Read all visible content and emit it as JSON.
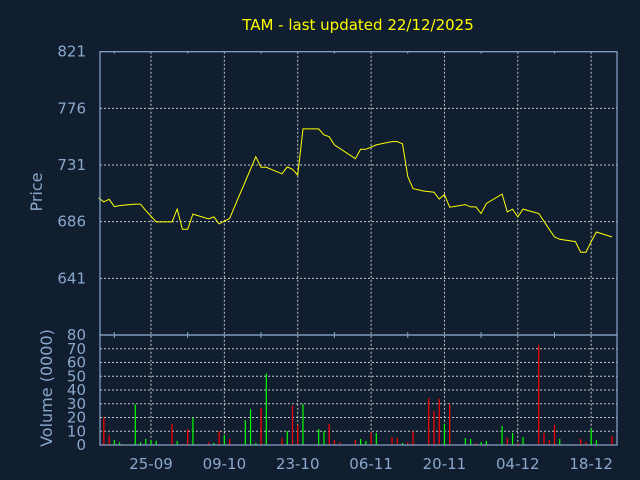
{
  "chart_data": [
    {
      "type": "line",
      "title": "TAM - last updated 22/12/2025",
      "xlabel": "",
      "ylabel": "Price",
      "ylim": [
        596,
        821
      ],
      "yticks": [
        "821",
        "776",
        "731",
        "686",
        "641"
      ],
      "grid": true,
      "colors": {
        "line": "#ffff00",
        "background": "#111e2f",
        "axis": "#8aa8cc",
        "grid": "#c8c8c8"
      },
      "points": [
        [
          "2025-09-15",
          705
        ],
        [
          "2025-09-16",
          701.7
        ],
        [
          "2025-09-17",
          703.8
        ],
        [
          "2025-09-18",
          698
        ],
        [
          "2025-09-19",
          698.8
        ],
        [
          "2025-09-22",
          700
        ],
        [
          "2025-09-23",
          700
        ],
        [
          "2025-09-24",
          694.8
        ],
        [
          "2025-09-26",
          685.8
        ],
        [
          "2025-09-29",
          685.8
        ],
        [
          "2025-09-30",
          696
        ],
        [
          "2025-10-01",
          680
        ],
        [
          "2025-10-02",
          680
        ],
        [
          "2025-10-03",
          692
        ],
        [
          "2025-10-06",
          688.2
        ],
        [
          "2025-10-07",
          689.8
        ],
        [
          "2025-10-08",
          684.2
        ],
        [
          "2025-10-10",
          688.5
        ],
        [
          "2025-10-15",
          737.6
        ],
        [
          "2025-10-16",
          729.2
        ],
        [
          "2025-10-17",
          729.2
        ],
        [
          "2025-10-20",
          724
        ],
        [
          "2025-10-21",
          729.5
        ],
        [
          "2025-10-22",
          727.6
        ],
        [
          "2025-10-23",
          723
        ],
        [
          "2025-10-24",
          759.7
        ],
        [
          "2025-10-27",
          759.7
        ],
        [
          "2025-10-28",
          755
        ],
        [
          "2025-10-29",
          753.5
        ],
        [
          "2025-10-30",
          747
        ],
        [
          "2025-11-03",
          736
        ],
        [
          "2025-11-04",
          743.5
        ],
        [
          "2025-11-05",
          743.5
        ],
        [
          "2025-11-07",
          747
        ],
        [
          "2025-11-09",
          748.8
        ],
        [
          "2025-11-10",
          749.6
        ],
        [
          "2025-11-11",
          749.6
        ],
        [
          "2025-11-12",
          747.8
        ],
        [
          "2025-11-13",
          721.8
        ],
        [
          "2025-11-14",
          712.3
        ],
        [
          "2025-11-16",
          710.4
        ],
        [
          "2025-11-18",
          709.4
        ],
        [
          "2025-11-19",
          704
        ],
        [
          "2025-11-20",
          707.5
        ],
        [
          "2025-11-21",
          697.5
        ],
        [
          "2025-11-24",
          699.6
        ],
        [
          "2025-11-25",
          697.7
        ],
        [
          "2025-11-26",
          697.7
        ],
        [
          "2025-11-27",
          692.5
        ],
        [
          "2025-11-28",
          700.4
        ],
        [
          "2025-12-01",
          707.9
        ],
        [
          "2025-12-02",
          693.8
        ],
        [
          "2025-12-03",
          696
        ],
        [
          "2025-12-04",
          689.8
        ],
        [
          "2025-12-05",
          696
        ],
        [
          "2025-12-08",
          692.5
        ],
        [
          "2025-12-10",
          680
        ],
        [
          "2025-12-11",
          673.8
        ],
        [
          "2025-12-12",
          672
        ],
        [
          "2025-12-15",
          670.2
        ],
        [
          "2025-12-16",
          661.8
        ],
        [
          "2025-12-17",
          661.8
        ],
        [
          "2025-12-18",
          670.2
        ],
        [
          "2025-12-19",
          677.8
        ],
        [
          "2025-12-22",
          673.8
        ]
      ]
    },
    {
      "type": "bar",
      "xlabel": "",
      "ylabel": "Volume (0000)",
      "ylim": [
        0,
        80
      ],
      "yticks": [
        "80",
        "70",
        "60",
        "50",
        "40",
        "30",
        "20",
        "10",
        "0"
      ],
      "xticks": [
        [
          "2025-09-25",
          "25-09"
        ],
        [
          "2025-10-09",
          "09-10"
        ],
        [
          "2025-10-23",
          "23-10"
        ],
        [
          "2025-11-06",
          "06-11"
        ],
        [
          "2025-11-20",
          "20-11"
        ],
        [
          "2025-12-04",
          "04-12"
        ],
        [
          "2025-12-18",
          "18-12"
        ]
      ],
      "grid": true,
      "colors": {
        "up": "#00ff00",
        "down": "#ff0000"
      },
      "bars": [
        [
          "2025-09-16",
          20,
          "down"
        ],
        [
          "2025-09-17",
          7,
          "down"
        ],
        [
          "2025-09-18",
          3.6,
          "up"
        ],
        [
          "2025-09-19",
          2,
          "up"
        ],
        [
          "2025-09-22",
          29.6,
          "up"
        ],
        [
          "2025-09-23",
          2,
          "up"
        ],
        [
          "2025-09-24",
          4.4,
          "up"
        ],
        [
          "2025-09-25",
          3.6,
          "up"
        ],
        [
          "2025-09-26",
          3,
          "up"
        ],
        [
          "2025-09-29",
          15.3,
          "down"
        ],
        [
          "2025-09-30",
          3,
          "up"
        ],
        [
          "2025-10-01",
          0.7,
          "down"
        ],
        [
          "2025-10-02",
          11.6,
          "down"
        ],
        [
          "2025-10-03",
          20,
          "up"
        ],
        [
          "2025-10-06",
          2,
          "down"
        ],
        [
          "2025-10-07",
          1.5,
          "up"
        ],
        [
          "2025-10-08",
          10,
          "down"
        ],
        [
          "2025-10-09",
          7.3,
          "up"
        ],
        [
          "2025-10-10",
          4.4,
          "down"
        ],
        [
          "2025-10-13",
          18,
          "up"
        ],
        [
          "2025-10-14",
          26,
          "up"
        ],
        [
          "2025-10-15",
          1.5,
          "up"
        ],
        [
          "2025-10-16",
          27,
          "down"
        ],
        [
          "2025-10-17",
          52,
          "up"
        ],
        [
          "2025-10-20",
          5,
          "down"
        ],
        [
          "2025-10-21",
          10,
          "up"
        ],
        [
          "2025-10-22",
          28.6,
          "down"
        ],
        [
          "2025-10-23",
          14.8,
          "down"
        ],
        [
          "2025-10-24",
          29.8,
          "up"
        ],
        [
          "2025-10-27",
          11.6,
          "up"
        ],
        [
          "2025-10-28",
          10,
          "up"
        ],
        [
          "2025-10-29",
          15.3,
          "down"
        ],
        [
          "2025-10-30",
          3.6,
          "down"
        ],
        [
          "2025-10-31",
          2,
          "down"
        ],
        [
          "2025-11-03",
          3.6,
          "down"
        ],
        [
          "2025-11-04",
          4.4,
          "up"
        ],
        [
          "2025-11-05",
          3,
          "up"
        ],
        [
          "2025-11-06",
          9,
          "down"
        ],
        [
          "2025-11-07",
          8.7,
          "up"
        ],
        [
          "2025-11-10",
          5.8,
          "down"
        ],
        [
          "2025-11-11",
          5,
          "down"
        ],
        [
          "2025-11-12",
          1.5,
          "up"
        ],
        [
          "2025-11-13",
          2,
          "down"
        ],
        [
          "2025-11-14",
          10,
          "down"
        ],
        [
          "2025-11-17",
          34,
          "down"
        ],
        [
          "2025-11-18",
          24.7,
          "down"
        ],
        [
          "2025-11-19",
          33.5,
          "down"
        ],
        [
          "2025-11-20",
          15.3,
          "up"
        ],
        [
          "2025-11-21",
          29.8,
          "down"
        ],
        [
          "2025-11-24",
          5,
          "up"
        ],
        [
          "2025-11-25",
          4.4,
          "up"
        ],
        [
          "2025-11-26",
          1.5,
          "down"
        ],
        [
          "2025-11-27",
          2,
          "up"
        ],
        [
          "2025-11-28",
          3,
          "up"
        ],
        [
          "2025-12-01",
          13.8,
          "up"
        ],
        [
          "2025-12-02",
          5,
          "down"
        ],
        [
          "2025-12-03",
          8.7,
          "up"
        ],
        [
          "2025-12-04",
          1.5,
          "down"
        ],
        [
          "2025-12-05",
          5.8,
          "up"
        ],
        [
          "2025-12-08",
          72.7,
          "down"
        ],
        [
          "2025-12-09",
          8.7,
          "down"
        ],
        [
          "2025-12-10",
          3.6,
          "down"
        ],
        [
          "2025-12-11",
          14.5,
          "down"
        ],
        [
          "2025-12-12",
          4.4,
          "up"
        ],
        [
          "2025-12-15",
          0.7,
          "down"
        ],
        [
          "2025-12-16",
          4.4,
          "down"
        ],
        [
          "2025-12-17",
          2,
          "down"
        ],
        [
          "2025-12-18",
          12,
          "up"
        ],
        [
          "2025-12-19",
          3.6,
          "up"
        ],
        [
          "2025-12-22",
          6.5,
          "down"
        ]
      ]
    }
  ]
}
